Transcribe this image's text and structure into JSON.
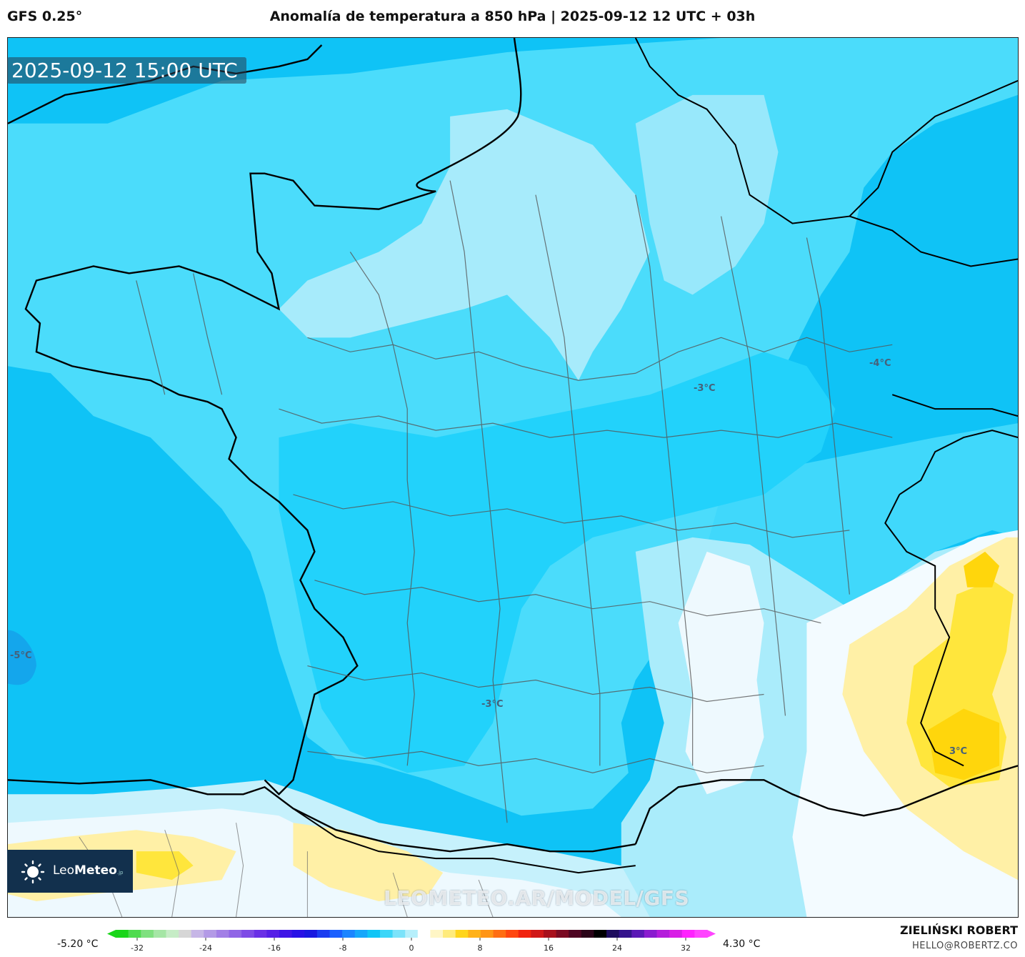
{
  "header": {
    "model": "GFS 0.25°",
    "title": "Anomalía de temperatura a 850 hPa | 2025-09-12 12 UTC + 03h"
  },
  "map": {
    "timestamp": "2025-09-12 15:00 UTC",
    "watermark": "LEOMETEO.AR/MODEL/GFS",
    "logo": {
      "name_light": "Leo",
      "name_bold": "Meteo",
      "suffix": ".jp"
    },
    "contour_labels": [
      "-4°C",
      "-3°C",
      "-5°C",
      "-3°C",
      "3°C"
    ],
    "colors": {
      "deep_blue": "#0fc3f6",
      "mid_blue": "#22d6fb",
      "light_blue": "#63e0fb",
      "pale_blue": "#aaecfb",
      "near_white": "#e6f7fd",
      "light_yellow": "#fff0a6",
      "yellow": "#ffe63c",
      "deep_yellow": "#ffd60c"
    }
  },
  "colorbar": {
    "min_label": "-5.20 °C",
    "max_label": "4.30 °C",
    "ticks": [
      "-32",
      "-24",
      "-16",
      "-8",
      "0",
      "8",
      "16",
      "24",
      "32"
    ],
    "colors": [
      "#1ad61a",
      "#4fdb4f",
      "#7fe07f",
      "#a5e6a5",
      "#c6ecc6",
      "#d6d6d6",
      "#c6b6e6",
      "#b39ae6",
      "#a27fe6",
      "#9065e6",
      "#7e4be6",
      "#6a30e6",
      "#5620e6",
      "#3f15e6",
      "#2811e6",
      "#1818e0",
      "#1a3cf0",
      "#1a60ff",
      "#1c85ff",
      "#16a7fb",
      "#10c5f6",
      "#3cd6f8",
      "#7ce3fa",
      "#b6effb",
      "#ffffff",
      "#fff6c6",
      "#ffeb7c",
      "#ffd51c",
      "#ffb21a",
      "#ff9516",
      "#ff6e13",
      "#ff4710",
      "#f1230f",
      "#d01818",
      "#a8101c",
      "#7a0a22",
      "#4e0522",
      "#2a0418",
      "#000000",
      "#1e0d5e",
      "#34138c",
      "#5a18b6",
      "#8a1ccf",
      "#b41ddb",
      "#d81ee6",
      "#ff22ff",
      "#ff44ff"
    ]
  },
  "credits": {
    "author": "ZIELIŃSKI ROBERT",
    "email": "HELLO@ROBERTZ.CO"
  }
}
